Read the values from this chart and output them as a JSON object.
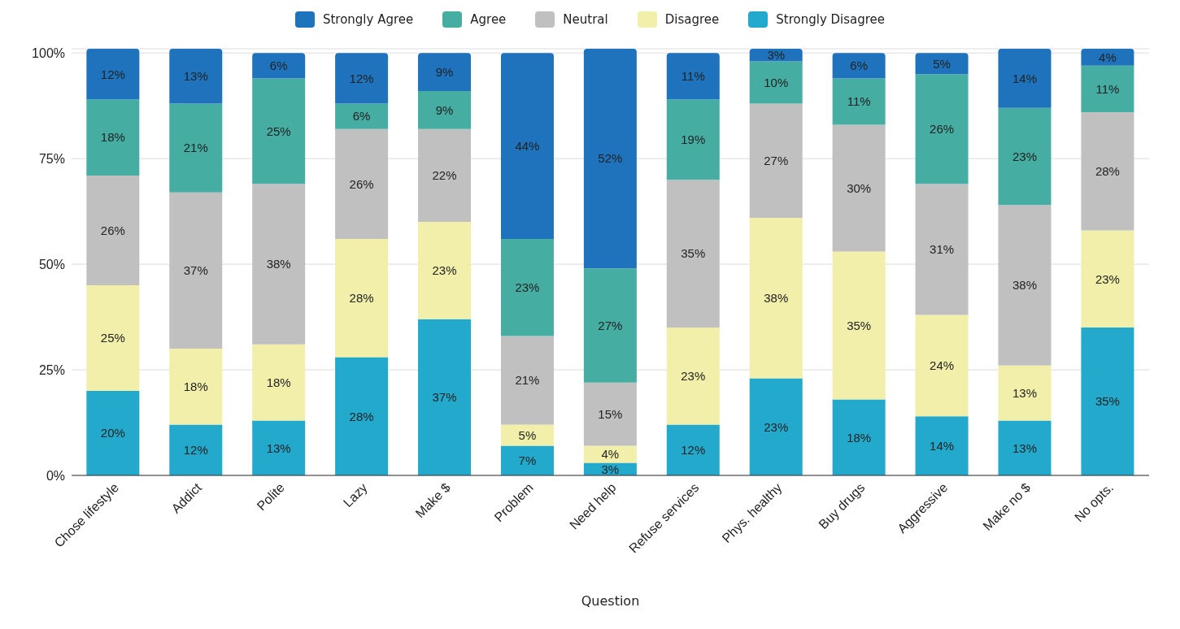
{
  "chart_data": {
    "type": "bar",
    "stacked": true,
    "xlabel": "Question",
    "categories": [
      "Chose lifestyle",
      "Addict",
      "Polite",
      "Lazy",
      "Make $",
      "Problem",
      "Need help",
      "Refuse services",
      "Phys. healthy",
      "Buy drugs",
      "Aggressive",
      "Make no $",
      "No opts."
    ],
    "series": [
      {
        "name": "Strongly Disagree",
        "color": "#22a9cc",
        "values": [
          20,
          12,
          13,
          28,
          37,
          7,
          3,
          12,
          23,
          18,
          14,
          13,
          35
        ],
        "value_labels": [
          "20%",
          "12%",
          "13%",
          "28%",
          "37%",
          "7%",
          "3%",
          "12%",
          "23%",
          "18%",
          "14%",
          "13%",
          "35%"
        ]
      },
      {
        "name": "Disagree",
        "color": "#f2efaa",
        "values": [
          25,
          18,
          18,
          28,
          23,
          5,
          4,
          23,
          38,
          35,
          24,
          13,
          23
        ],
        "value_labels": [
          "25%",
          "18%",
          "18%",
          "28%",
          "23%",
          "5%",
          "4%",
          "23%",
          "38%",
          "35%",
          "24%",
          "13%",
          "23%"
        ]
      },
      {
        "name": "Neutral",
        "color": "#c0c0c0",
        "values": [
          26,
          37,
          38,
          26,
          22,
          21,
          15,
          35,
          27,
          30,
          31,
          38,
          28
        ],
        "value_labels": [
          "26%",
          "37%",
          "38%",
          "26%",
          "22%",
          "21%",
          "15%",
          "35%",
          "27%",
          "30%",
          "31%",
          "38%",
          "28%"
        ]
      },
      {
        "name": "Agree",
        "color": "#46ada3",
        "values": [
          18,
          21,
          25,
          6,
          9,
          23,
          27,
          19,
          10,
          11,
          26,
          23,
          11
        ],
        "value_labels": [
          "18%",
          "21%",
          "25%",
          "6%",
          "9%",
          "23%",
          "27%",
          "19%",
          "10%",
          "11%",
          "26%",
          "23%",
          "11%"
        ]
      },
      {
        "name": "Strongly Agree",
        "color": "#1f73bd",
        "values": [
          12,
          13,
          6,
          12,
          9,
          44,
          52,
          11,
          3,
          6,
          5,
          14,
          4
        ],
        "value_labels": [
          "12%",
          "13%",
          "6%",
          "12%",
          "9%",
          "44%",
          "52%",
          "11%",
          "3%",
          "6%",
          "5%",
          "14%",
          "4%"
        ]
      }
    ],
    "ylim": [
      0,
      101
    ],
    "yticks": [
      {
        "value": 0,
        "label": "0%"
      },
      {
        "value": 25,
        "label": "25%"
      },
      {
        "value": 50,
        "label": "50%"
      },
      {
        "value": 75,
        "label": "75%"
      },
      {
        "value": 100,
        "label": "100%"
      }
    ],
    "grid": "y",
    "legend": "top"
  }
}
